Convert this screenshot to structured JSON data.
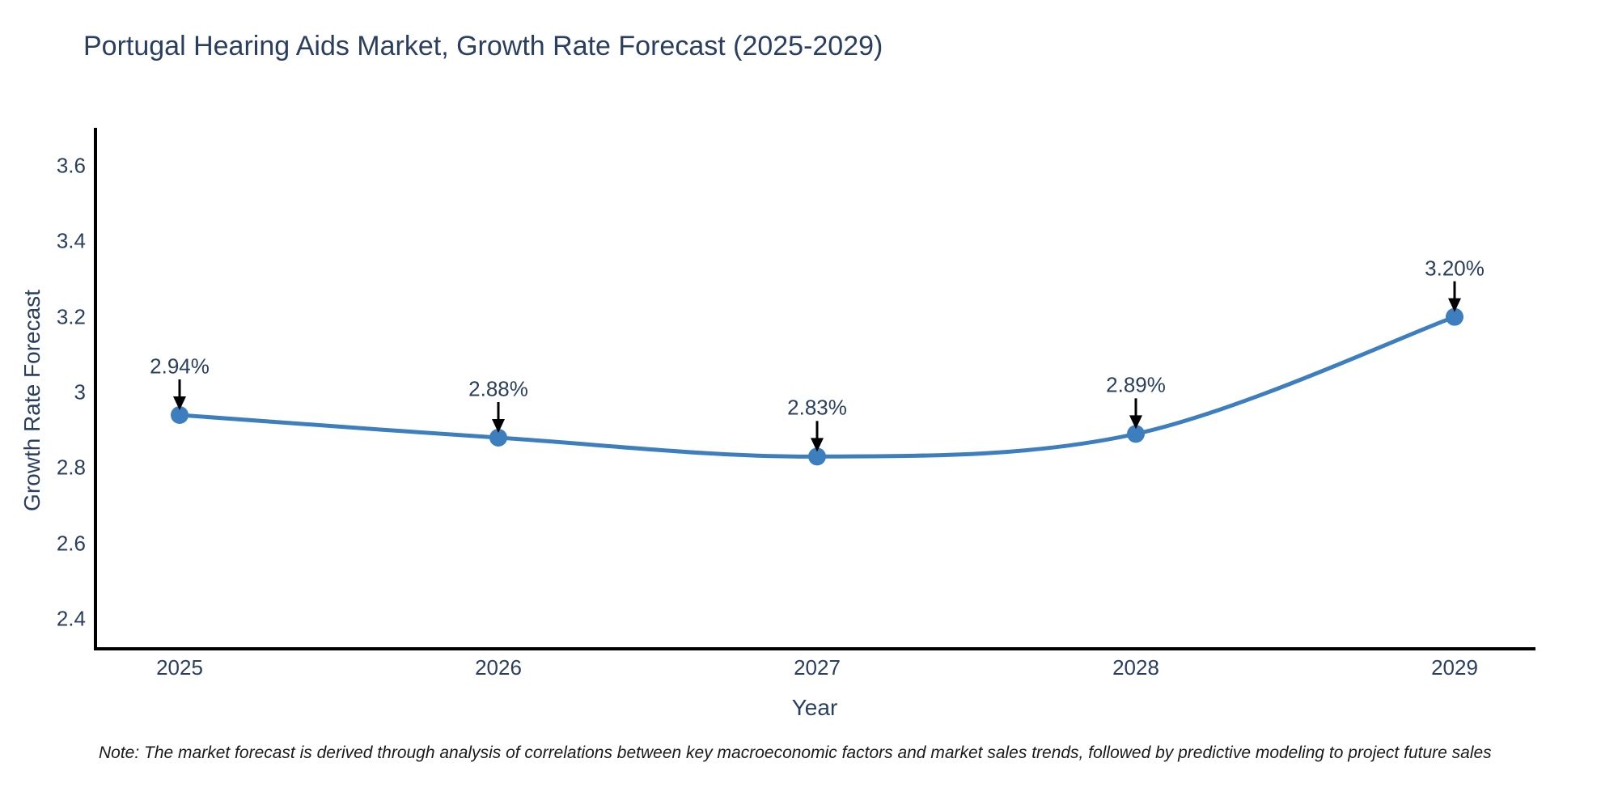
{
  "chart": {
    "title": "Portugal Hearing Aids Market, Growth Rate Forecast (2025-2029)",
    "xlabel": "Year",
    "ylabel": "Growth Rate Forecast"
  },
  "note": {
    "text": "Note: The market forecast is derived through analysis of correlations between key macroeconomic factors and market sales trends, followed by predictive modeling to project future sales"
  },
  "chart_data": {
    "type": "line",
    "title": "Portugal Hearing Aids Market, Growth Rate Forecast (2025-2029)",
    "xlabel": "Year",
    "ylabel": "Growth Rate Forecast",
    "x": [
      2025,
      2026,
      2027,
      2028,
      2029
    ],
    "series": [
      {
        "name": "Growth Rate Forecast",
        "values": [
          2.94,
          2.88,
          2.83,
          2.89,
          3.2
        ],
        "point_labels": [
          "2.94%",
          "2.88%",
          "2.83%",
          "2.89%",
          "3.20%"
        ]
      }
    ],
    "xticks": [
      "2025",
      "2026",
      "2027",
      "2028",
      "2029"
    ],
    "yticks": [
      "3.6",
      "3.4",
      "3.2",
      "3",
      "2.8",
      "2.6",
      "2.4"
    ],
    "ytick_values": [
      3.6,
      3.4,
      3.2,
      3.0,
      2.8,
      2.6,
      2.4
    ],
    "ylim": [
      2.32,
      3.7
    ],
    "line_shape": "spline",
    "grid": false,
    "legend_position": "none",
    "line_color": "#3d7ebe",
    "marker_color": "#3d7ebe",
    "arrow_color": "#000000",
    "axis_color": "#000000",
    "text_color": "#2a3f5f"
  }
}
